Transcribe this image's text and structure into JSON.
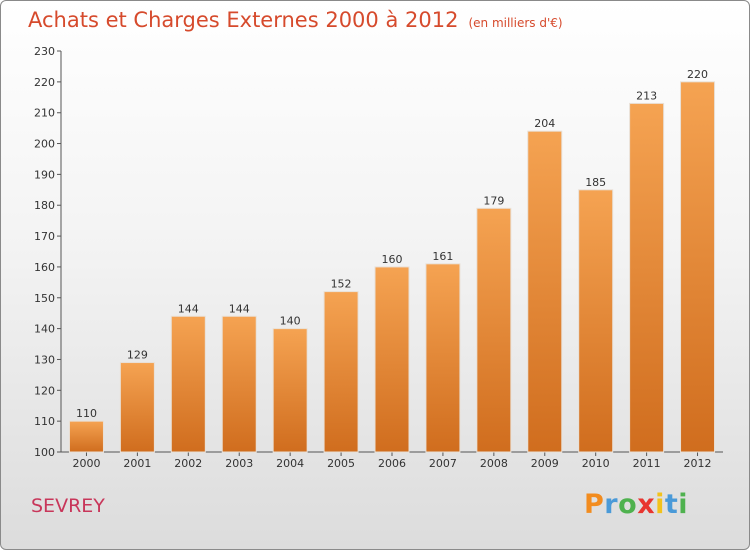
{
  "chart_data": {
    "type": "bar",
    "title": "Achats et Charges Externes 2000 à 2012",
    "subtitle": "(en milliers d'€)",
    "categories": [
      "2000",
      "2001",
      "2002",
      "2003",
      "2004",
      "2005",
      "2006",
      "2007",
      "2008",
      "2009",
      "2010",
      "2011",
      "2012"
    ],
    "values": [
      110,
      129,
      144,
      144,
      140,
      152,
      160,
      161,
      179,
      204,
      185,
      213,
      220
    ],
    "ylim": [
      100,
      230
    ],
    "yticks": [
      100,
      110,
      120,
      130,
      140,
      150,
      160,
      170,
      180,
      190,
      200,
      210,
      220,
      230
    ],
    "grid": false,
    "bar_color_top": "#f5a352",
    "bar_color_bottom": "#d06d1e"
  },
  "town": "SEVREY",
  "logo": {
    "letters": [
      "P",
      "r",
      "o",
      "x",
      "i",
      "t",
      "i"
    ],
    "colors": [
      "#f28c1f",
      "#4a9ad8",
      "#4fb24f",
      "#e8352f",
      "#f2c21b",
      "#4a9ad8",
      "#4fb24f"
    ]
  }
}
